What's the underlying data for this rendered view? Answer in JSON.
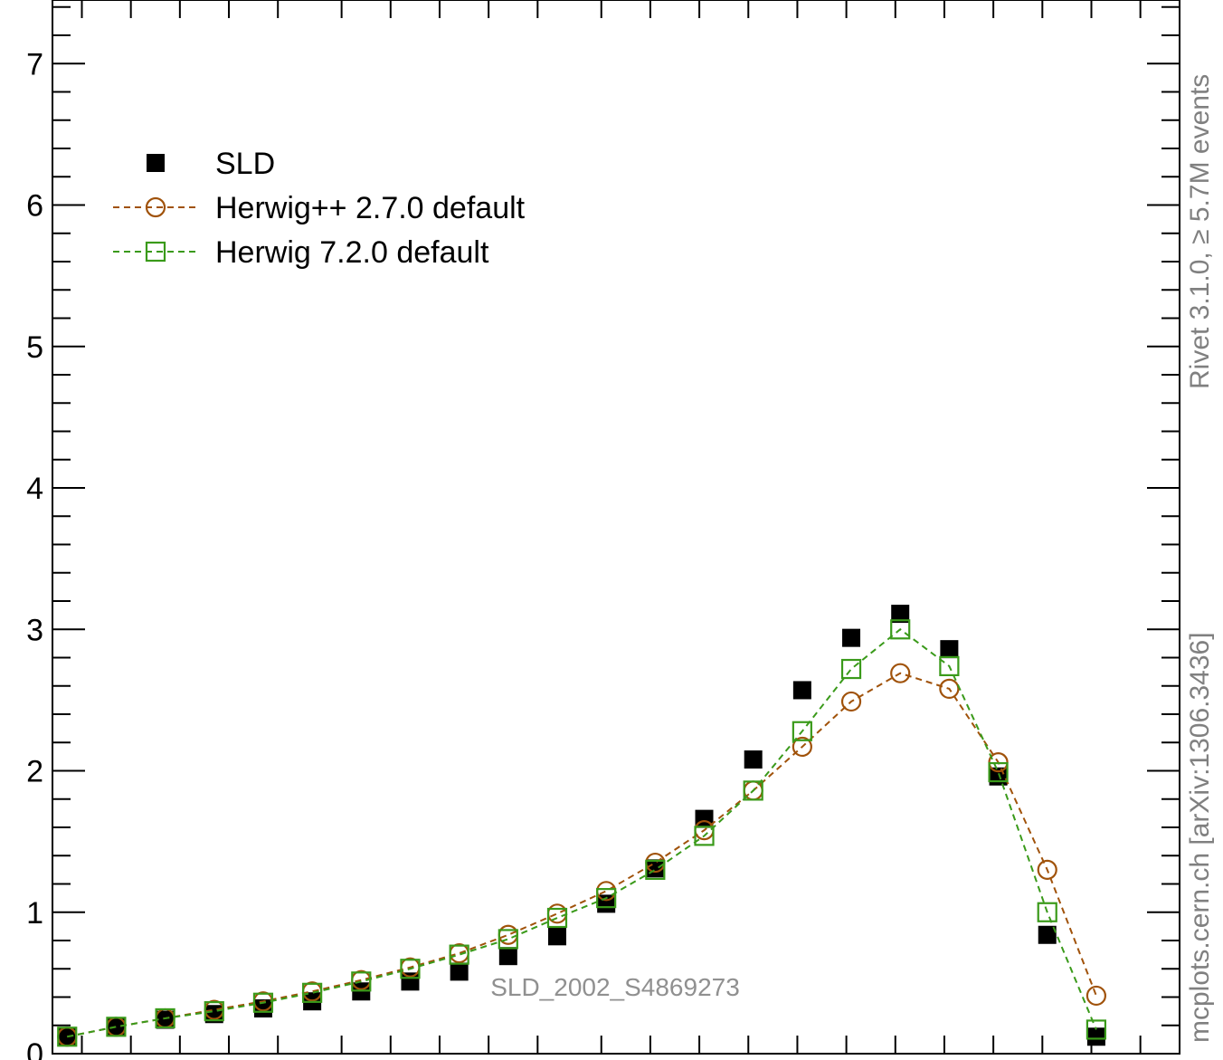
{
  "chart_data": {
    "type": "scatter",
    "title": "",
    "xlabel": "",
    "ylabel": "",
    "ylim": [
      0,
      7.45
    ],
    "y_ticks": [
      "0",
      "1",
      "2",
      "3",
      "4",
      "5",
      "6",
      "7"
    ],
    "x_index_range": [
      -0.3,
      22.7
    ],
    "legend_position": "top-left",
    "grid": false,
    "watermark": "SLD_2002_S4869273",
    "series": [
      {
        "name": "SLD",
        "color": "#000000",
        "marker": "filled-square",
        "values": [
          0.12,
          0.19,
          0.24,
          0.28,
          0.32,
          0.37,
          0.44,
          0.51,
          0.58,
          0.69,
          0.83,
          1.06,
          1.31,
          1.66,
          2.08,
          2.57,
          2.94,
          3.11,
          2.86,
          1.96,
          0.84,
          0.12
        ]
      },
      {
        "name": "Herwig++ 2.7.0 default",
        "color": "#a0520a",
        "marker": "open-circle",
        "values": [
          0.12,
          0.19,
          0.25,
          0.31,
          0.37,
          0.44,
          0.52,
          0.61,
          0.71,
          0.84,
          0.99,
          1.15,
          1.35,
          1.58,
          1.86,
          2.17,
          2.49,
          2.69,
          2.58,
          2.06,
          1.3,
          0.41
        ]
      },
      {
        "name": "Herwig 7.2.0 default",
        "color": "#3a9a1a",
        "marker": "open-square",
        "values": [
          0.12,
          0.19,
          0.25,
          0.3,
          0.36,
          0.43,
          0.51,
          0.6,
          0.7,
          0.81,
          0.96,
          1.1,
          1.3,
          1.54,
          1.86,
          2.28,
          2.72,
          3.0,
          2.74,
          1.99,
          1.0,
          0.17
        ]
      }
    ]
  },
  "side_labels": {
    "rivet": "Rivet 3.1.0, ≥ 5.7M events",
    "mcplots": "mcplots.cern.ch [arXiv:1306.3436]"
  }
}
